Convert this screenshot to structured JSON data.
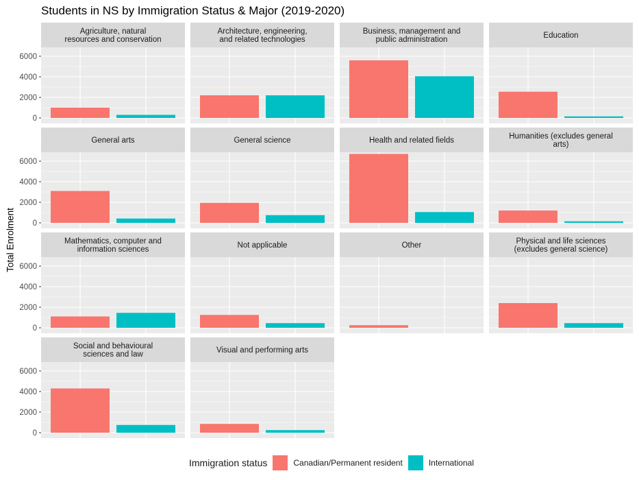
{
  "chart_data": {
    "type": "bar",
    "title": "Students in NS by Immigration Status & Major (2019-2020)",
    "xlabel": "",
    "ylabel": "Total Enrolment",
    "ylim": [
      0,
      7000
    ],
    "yticks": [
      0,
      2000,
      4000,
      6000
    ],
    "grid": true,
    "legend": {
      "title": "Immigration status",
      "position": "bottom"
    },
    "series": [
      {
        "name": "Canadian/Permanent resident",
        "color": "#F8766D"
      },
      {
        "name": "International",
        "color": "#00BFC4"
      }
    ],
    "facets": [
      {
        "label": "Agriculture, natural\nresources and conservation",
        "values": [
          1000,
          300
        ]
      },
      {
        "label": "Architecture, engineering,\nand related technologies",
        "values": [
          2200,
          2200
        ]
      },
      {
        "label": "Business, management and\npublic administration",
        "values": [
          5600,
          4050
        ]
      },
      {
        "label": "Education",
        "values": [
          2550,
          150
        ]
      },
      {
        "label": "General arts",
        "values": [
          3100,
          420
        ]
      },
      {
        "label": "General science",
        "values": [
          1950,
          750
        ]
      },
      {
        "label": "Health and related fields",
        "values": [
          6700,
          1050
        ]
      },
      {
        "label": "Humanities (excludes general\narts)",
        "values": [
          1200,
          150
        ]
      },
      {
        "label": "Mathematics, computer and\ninformation sciences",
        "values": [
          1100,
          1450
        ]
      },
      {
        "label": "Not applicable",
        "values": [
          1250,
          450
        ]
      },
      {
        "label": "Other",
        "values": [
          250,
          0
        ]
      },
      {
        "label": "Physical and life sciences\n(excludes general science)",
        "values": [
          2400,
          450
        ]
      },
      {
        "label": "Social and behavioural\nsciences and law",
        "values": [
          4300,
          750
        ]
      },
      {
        "label": "Visual and performing arts",
        "values": [
          850,
          250
        ]
      }
    ]
  }
}
